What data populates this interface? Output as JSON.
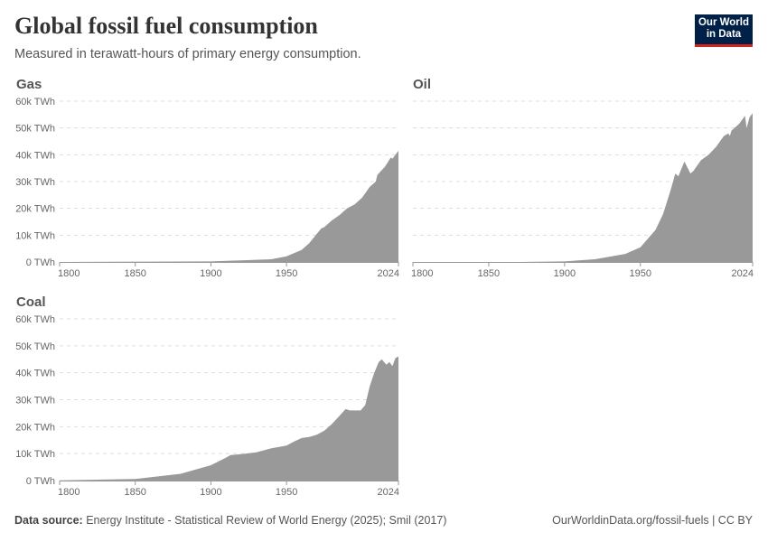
{
  "title": "Global fossil fuel consumption",
  "subtitle": "Measured in terawatt-hours of primary energy consumption.",
  "logo": {
    "line1": "Our World",
    "line2": "in Data"
  },
  "footer": {
    "source_label": "Data source:",
    "source": "Energy Institute - Statistical Review of World Energy (2025); Smil (2017)",
    "credit": "OurWorldinData.org/fossil-fuels | CC BY"
  },
  "colors": {
    "area": "#999999",
    "grid": "#dddddd",
    "text": "#666666"
  },
  "chart_data": [
    {
      "type": "area",
      "title": "Gas",
      "xlim": [
        1800,
        2024
      ],
      "ylim": [
        0,
        60000
      ],
      "unit": "TWh",
      "xticks": [
        "1800",
        "1850",
        "1900",
        "1950",
        "2024"
      ],
      "yticks": [
        "0 TWh",
        "10k TWh",
        "20k TWh",
        "30k TWh",
        "40k TWh",
        "50k TWh",
        "60k TWh"
      ],
      "grid": true,
      "x": [
        1800,
        1900,
        1920,
        1940,
        1950,
        1960,
        1965,
        1970,
        1973,
        1975,
        1980,
        1985,
        1990,
        1995,
        2000,
        2005,
        2009,
        2010,
        2015,
        2019,
        2020,
        2022,
        2024
      ],
      "values": [
        0,
        200,
        600,
        1000,
        2100,
        4500,
        7000,
        10500,
        12500,
        13000,
        15500,
        17500,
        20000,
        21500,
        24000,
        28000,
        30000,
        32500,
        35500,
        39000,
        38500,
        40000,
        41500
      ]
    },
    {
      "type": "area",
      "title": "Oil",
      "xlim": [
        1800,
        2024
      ],
      "ylim": [
        0,
        60000
      ],
      "unit": "TWh",
      "xticks": [
        "1800",
        "1850",
        "1900",
        "1950",
        "2024"
      ],
      "yticks": [],
      "grid": true,
      "x": [
        1800,
        1870,
        1900,
        1920,
        1940,
        1950,
        1960,
        1965,
        1970,
        1973,
        1975,
        1979,
        1983,
        1985,
        1990,
        1995,
        2000,
        2005,
        2008,
        2009,
        2010,
        2015,
        2019,
        2020,
        2022,
        2024
      ],
      "values": [
        0,
        10,
        200,
        1000,
        3000,
        5500,
        12000,
        18000,
        27000,
        33000,
        32000,
        37500,
        33000,
        34000,
        38000,
        40000,
        43000,
        47000,
        48000,
        47000,
        49000,
        51500,
        54500,
        50000,
        54000,
        55500
      ]
    },
    {
      "type": "area",
      "title": "Coal",
      "xlim": [
        1800,
        2024
      ],
      "ylim": [
        0,
        60000
      ],
      "unit": "TWh",
      "xticks": [
        "1800",
        "1850",
        "1900",
        "1950",
        "2024"
      ],
      "yticks": [
        "0 TWh",
        "10k TWh",
        "20k TWh",
        "30k TWh",
        "40k TWh",
        "50k TWh",
        "60k TWh"
      ],
      "grid": true,
      "x": [
        1800,
        1850,
        1880,
        1900,
        1910,
        1913,
        1920,
        1930,
        1940,
        1950,
        1955,
        1960,
        1965,
        1970,
        1975,
        1980,
        1985,
        1989,
        1992,
        1999,
        2002,
        2005,
        2008,
        2011,
        2013,
        2016,
        2018,
        2020,
        2022,
        2024
      ],
      "values": [
        100,
        600,
        2500,
        5700,
        8500,
        9500,
        9800,
        10500,
        12000,
        13000,
        14500,
        15800,
        16200,
        17000,
        18500,
        21000,
        24000,
        26500,
        26000,
        26000,
        28000,
        35000,
        40000,
        44000,
        45000,
        43000,
        44000,
        42500,
        45500,
        46000
      ]
    }
  ]
}
